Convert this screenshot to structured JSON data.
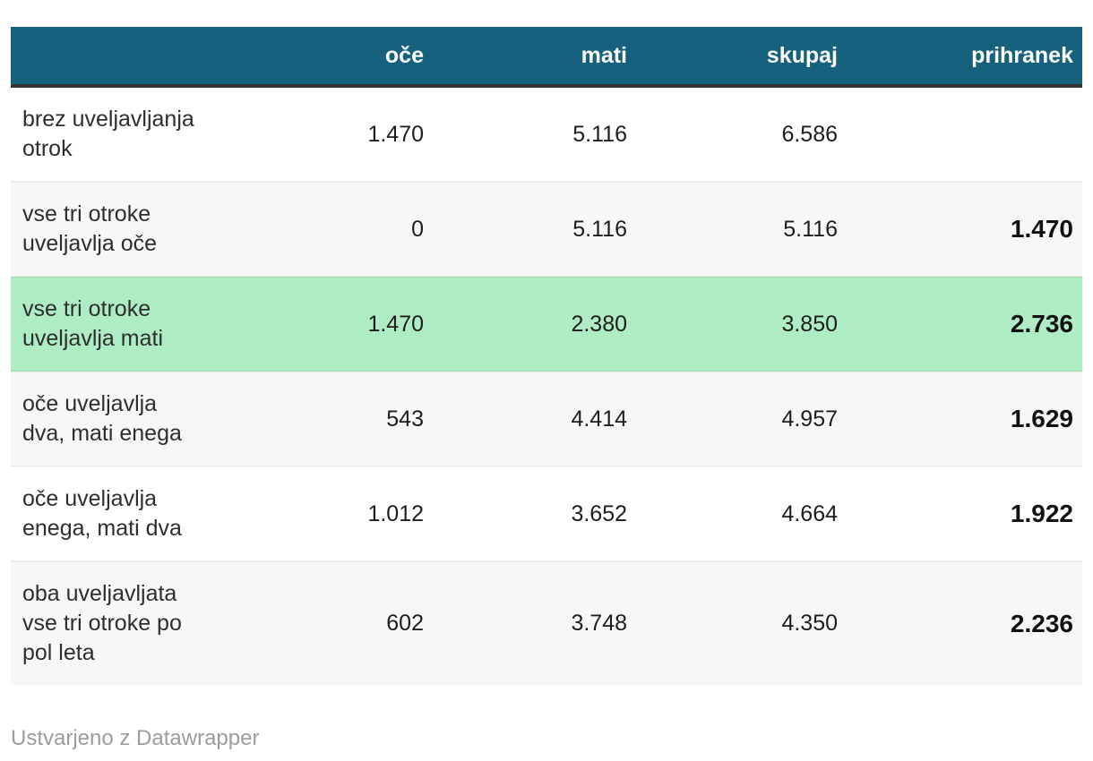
{
  "chart_data": {
    "type": "table",
    "columns": [
      "",
      "oče",
      "mati",
      "skupaj",
      "prihranek"
    ],
    "rows": [
      {
        "label_lines": [
          "brez uveljavljanja",
          "otrok"
        ],
        "oce": "1.470",
        "mati": "5.116",
        "skupaj": "6.586",
        "prihranek": "",
        "bg": "white"
      },
      {
        "label_lines": [
          "vse tri otroke",
          "uveljavlja oče"
        ],
        "oce": "0",
        "mati": "5.116",
        "skupaj": "5.116",
        "prihranek": "1.470",
        "bg": "stripe"
      },
      {
        "label_lines": [
          "vse tri otroke",
          "uveljavlja mati"
        ],
        "oce": "1.470",
        "mati": "2.380",
        "skupaj": "3.850",
        "prihranek": "2.736",
        "bg": "highlight"
      },
      {
        "label_lines": [
          "oče uveljavlja",
          "dva, mati enega"
        ],
        "oce": "543",
        "mati": "4.414",
        "skupaj": "4.957",
        "prihranek": "1.629",
        "bg": "stripe"
      },
      {
        "label_lines": [
          "oče uveljavlja",
          "enega, mati dva"
        ],
        "oce": "1.012",
        "mati": "3.652",
        "skupaj": "4.664",
        "prihranek": "1.922",
        "bg": "white"
      },
      {
        "label_lines": [
          "oba uveljavljata",
          "vse tri otroke po",
          "pol leta"
        ],
        "oce": "602",
        "mati": "3.748",
        "skupaj": "4.350",
        "prihranek": "2.236",
        "bg": "stripe"
      }
    ],
    "layout": {
      "numeric_alignment": "right",
      "highlighted_row_index": 2,
      "grid": "zebra-stripes"
    },
    "footer": "Ustvarjeno z Datawrapper"
  },
  "colors": {
    "header_bg": "#16617d",
    "header_text": "#ffffff",
    "header_border": "#333333",
    "stripe_row": "#f7f7f7",
    "highlight_row": "#aeecc3",
    "body_text": "#1d1d1d",
    "footer_text": "#9c9c9c"
  }
}
